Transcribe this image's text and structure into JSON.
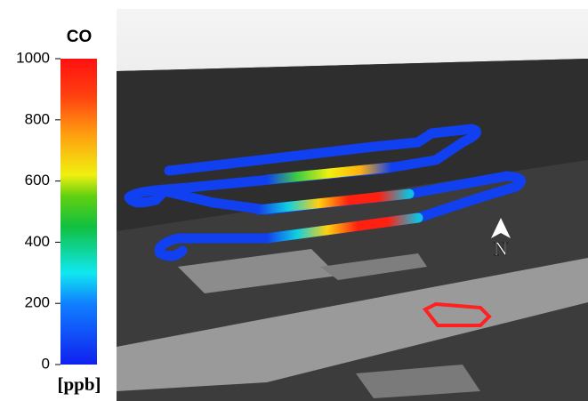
{
  "colorbar": {
    "title": "CO",
    "unit": "[ppb]",
    "lim": [
      0,
      1000
    ],
    "ticks": [
      0,
      200,
      400,
      600,
      800,
      1000
    ]
  },
  "compass": {
    "label": "N"
  }
}
